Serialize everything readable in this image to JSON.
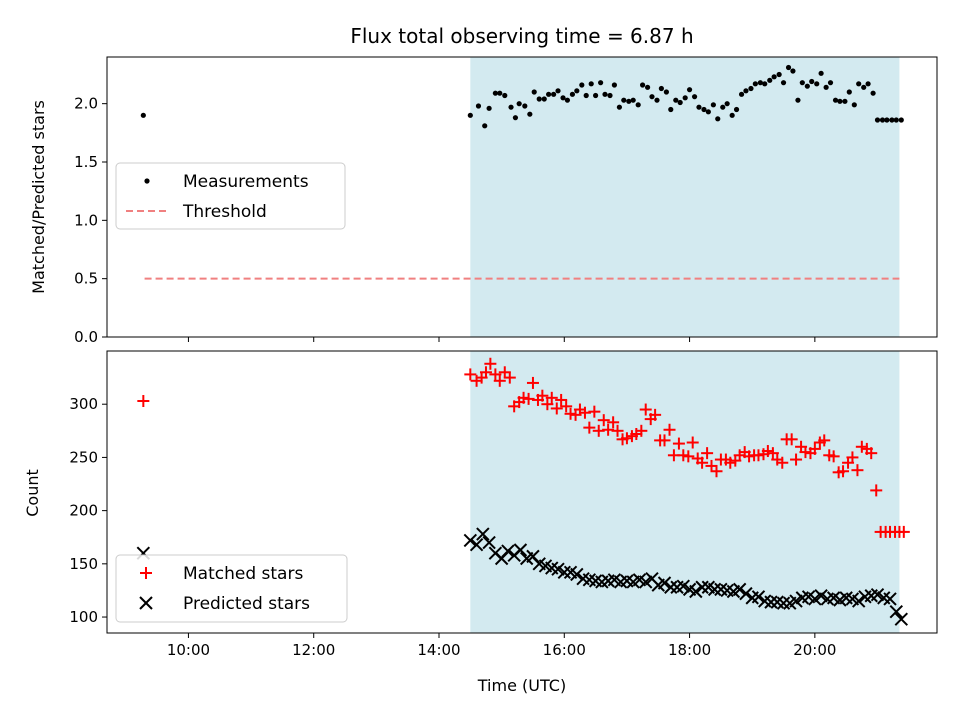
{
  "chart_data": {
    "type": "scatter",
    "title": "Flux total observing time = 6.87 h",
    "xlabel": "Time (UTC)",
    "x_ticks": [
      "10:00",
      "12:00",
      "14:00",
      "16:00",
      "18:00",
      "20:00"
    ],
    "x_tick_hours": [
      10,
      12,
      14,
      16,
      18,
      20
    ],
    "xlim": [
      8.7,
      21.95
    ],
    "highlight_range": [
      14.5,
      21.35
    ],
    "highlight_color": "#d3eaf0",
    "panels": [
      {
        "ylabel": "Matched/Predicted stars",
        "ylim": [
          0,
          2.4
        ],
        "y_ticks": [
          "0.0",
          "0.5",
          "1.0",
          "1.5",
          "2.0"
        ],
        "y_tick_values": [
          0,
          0.5,
          1.0,
          1.5,
          2.0
        ],
        "legend_position": "center-left",
        "legend": [
          "Measurements",
          "Threshold"
        ],
        "threshold": {
          "value": 0.5,
          "x_range": [
            9.3,
            21.35
          ],
          "color": "#f08080",
          "style": "dashed"
        },
        "series": [
          {
            "name": "Measurements",
            "marker": "dot",
            "color": "#000000",
            "x": [
              9.28,
              14.5,
              14.63,
              14.73,
              14.8,
              14.9,
              14.97,
              15.05,
              15.15,
              15.22,
              15.28,
              15.37,
              15.45,
              15.52,
              15.6,
              15.68,
              15.75,
              15.83,
              15.9,
              15.98,
              16.05,
              16.13,
              16.2,
              16.28,
              16.35,
              16.43,
              16.5,
              16.58,
              16.65,
              16.73,
              16.8,
              16.88,
              16.95,
              17.03,
              17.1,
              17.18,
              17.25,
              17.33,
              17.4,
              17.48,
              17.55,
              17.63,
              17.7,
              17.78,
              17.85,
              17.93,
              18.0,
              18.08,
              18.15,
              18.23,
              18.3,
              18.38,
              18.45,
              18.53,
              18.6,
              18.68,
              18.75,
              18.83,
              18.9,
              18.98,
              19.05,
              19.13,
              19.2,
              19.28,
              19.35,
              19.43,
              19.5,
              19.58,
              19.65,
              19.73,
              19.8,
              19.88,
              19.95,
              20.03,
              20.1,
              20.18,
              20.25,
              20.33,
              20.4,
              20.48,
              20.55,
              20.63,
              20.7,
              20.78,
              20.85,
              20.93,
              21.0,
              21.08,
              21.15,
              21.23,
              21.3,
              21.38
            ],
            "y": [
              1.9,
              1.9,
              1.98,
              1.81,
              1.96,
              2.09,
              2.09,
              2.07,
              1.97,
              1.88,
              2.0,
              1.98,
              1.91,
              2.1,
              2.04,
              2.04,
              2.08,
              2.08,
              2.11,
              2.05,
              2.03,
              2.08,
              2.11,
              2.16,
              2.07,
              2.17,
              2.07,
              2.18,
              2.08,
              2.07,
              2.16,
              1.97,
              2.03,
              2.02,
              2.03,
              1.99,
              2.16,
              2.14,
              2.06,
              2.03,
              2.13,
              2.1,
              1.95,
              2.03,
              2.01,
              2.05,
              2.12,
              2.06,
              1.97,
              1.95,
              1.93,
              1.99,
              1.87,
              1.97,
              2.0,
              1.9,
              1.95,
              2.08,
              2.11,
              2.13,
              2.17,
              2.18,
              2.17,
              2.2,
              2.23,
              2.25,
              2.18,
              2.31,
              2.28,
              2.03,
              2.18,
              2.15,
              2.19,
              2.17,
              2.26,
              2.14,
              2.18,
              2.03,
              2.02,
              2.02,
              2.1,
              1.99,
              2.17,
              2.14,
              2.17,
              2.09,
              1.86,
              1.86,
              1.86,
              1.86,
              1.86,
              1.86
            ]
          }
        ]
      },
      {
        "ylabel": "Count",
        "ylim": [
          85,
          350
        ],
        "y_ticks": [
          "100",
          "150",
          "200",
          "250",
          "300"
        ],
        "y_tick_values": [
          100,
          150,
          200,
          250,
          300
        ],
        "legend_position": "lower-left",
        "legend": [
          "Matched stars",
          "Predicted stars"
        ],
        "series": [
          {
            "name": "Matched stars",
            "marker": "plus",
            "color": "#ff0000",
            "x": [
              9.28,
              14.5,
              14.6,
              14.68,
              14.75,
              14.82,
              14.9,
              14.97,
              15.05,
              15.13,
              15.2,
              15.28,
              15.35,
              15.43,
              15.5,
              15.58,
              15.65,
              15.73,
              15.8,
              15.88,
              15.95,
              16.03,
              16.1,
              16.18,
              16.25,
              16.33,
              16.4,
              16.48,
              16.55,
              16.63,
              16.7,
              16.78,
              16.85,
              16.93,
              17.0,
              17.08,
              17.15,
              17.23,
              17.3,
              17.38,
              17.45,
              17.53,
              17.6,
              17.68,
              17.75,
              17.83,
              17.9,
              17.98,
              18.05,
              18.13,
              18.2,
              18.28,
              18.35,
              18.43,
              18.5,
              18.58,
              18.65,
              18.73,
              18.8,
              18.88,
              18.95,
              19.03,
              19.1,
              19.18,
              19.25,
              19.33,
              19.4,
              19.48,
              19.55,
              19.63,
              19.7,
              19.78,
              19.85,
              19.93,
              20.0,
              20.08,
              20.15,
              20.23,
              20.3,
              20.38,
              20.45,
              20.53,
              20.6,
              20.68,
              20.75,
              20.83,
              20.9,
              20.98,
              21.05,
              21.13,
              21.2,
              21.28,
              21.35,
              21.42
            ],
            "y": [
              303,
              328,
              322,
              325,
              330,
              338,
              328,
              322,
              330,
              325,
              298,
              302,
              306,
              305,
              320,
              304,
              308,
              300,
              306,
              296,
              304,
              298,
              291,
              290,
              295,
              292,
              278,
              293,
              275,
              285,
              276,
              283,
              275,
              267,
              268,
              270,
              272,
              275,
              295,
              286,
              290,
              266,
              266,
              276,
              252,
              263,
              252,
              251,
              264,
              249,
              245,
              254,
              242,
              237,
              248,
              248,
              245,
              247,
              252,
              255,
              251,
              252,
              252,
              253,
              256,
              254,
              248,
              245,
              267,
              267,
              248,
              260,
              255,
              254,
              258,
              264,
              266,
              252,
              251,
              236,
              237,
              245,
              250,
              238,
              260,
              258,
              254,
              219,
              180,
              180,
              180,
              180,
              180,
              180
            ],
            "note": ""
          },
          {
            "name": "Predicted stars",
            "marker": "x",
            "color": "#000000",
            "x": [
              9.28,
              14.5,
              14.6,
              14.7,
              14.8,
              14.9,
              15.0,
              15.1,
              15.2,
              15.3,
              15.4,
              15.5,
              15.6,
              15.7,
              15.8,
              15.9,
              16.0,
              16.1,
              16.2,
              16.3,
              16.4,
              16.5,
              16.6,
              16.7,
              16.8,
              16.9,
              17.0,
              17.1,
              17.2,
              17.3,
              17.4,
              17.5,
              17.6,
              17.7,
              17.8,
              17.9,
              18.0,
              18.1,
              18.2,
              18.3,
              18.4,
              18.5,
              18.6,
              18.7,
              18.8,
              18.9,
              19.0,
              19.1,
              19.2,
              19.3,
              19.4,
              19.5,
              19.6,
              19.7,
              19.8,
              19.9,
              20.0,
              20.1,
              20.2,
              20.3,
              20.4,
              20.5,
              20.6,
              20.7,
              20.8,
              20.9,
              21.0,
              21.1,
              21.2,
              21.3,
              21.38
            ],
            "y": [
              160,
              172,
              168,
              178,
              170,
              160,
              155,
              162,
              158,
              163,
              155,
              157,
              150,
              148,
              146,
              145,
              142,
              142,
              140,
              136,
              135,
              134,
              133,
              134,
              135,
              133,
              134,
              133,
              135,
              133,
              136,
              130,
              132,
              128,
              128,
              129,
              126,
              124,
              128,
              128,
              126,
              126,
              125,
              124,
              126,
              122,
              118,
              119,
              115,
              114,
              114,
              113,
              113,
              115,
              118,
              119,
              117,
              120,
              117,
              118,
              116,
              118,
              117,
              115,
              119,
              120,
              121,
              118,
              117,
              105,
              98
            ]
          }
        ]
      }
    ]
  }
}
